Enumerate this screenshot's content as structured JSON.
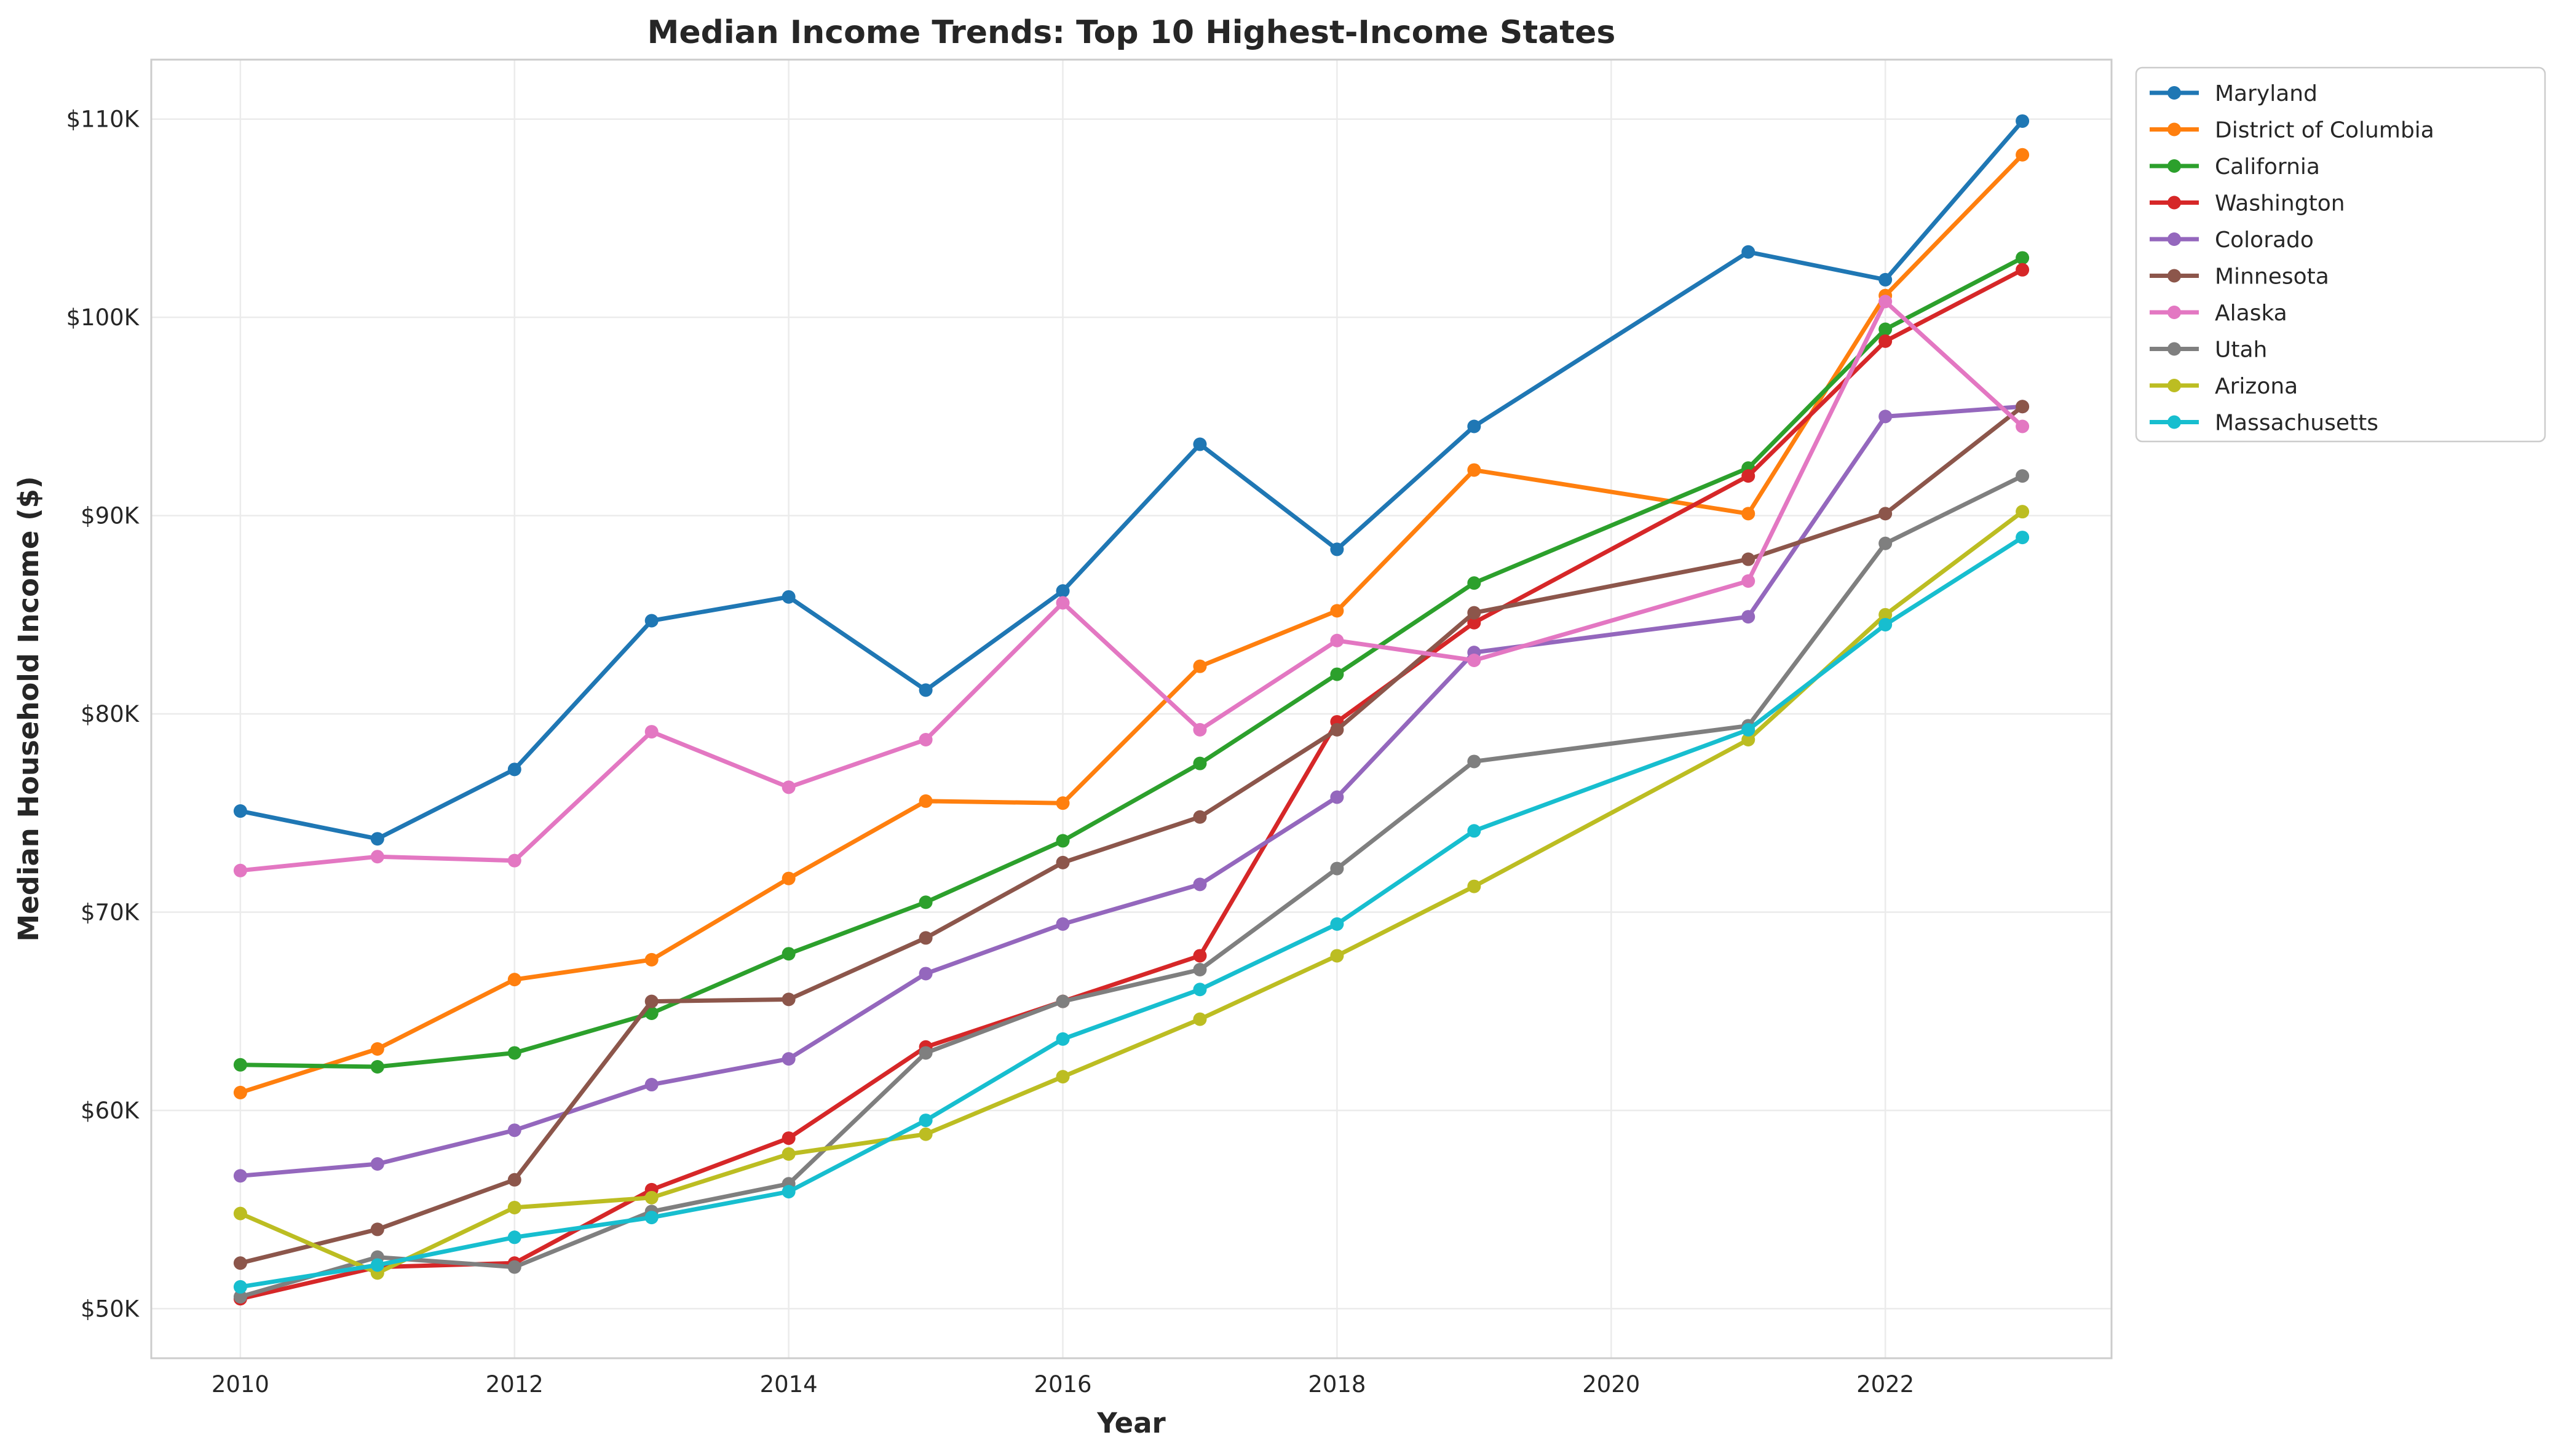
{
  "chart_data": {
    "type": "line",
    "title": "Median Income Trends: Top 10 Highest-Income States",
    "xlabel": "Year",
    "ylabel": "Median Household Income ($)",
    "xlim": [
      2009.35,
      2023.65
    ],
    "ylim": [
      47500,
      113000
    ],
    "x_ticks": [
      2010,
      2012,
      2014,
      2016,
      2018,
      2020,
      2022
    ],
    "y_ticks": [
      50000,
      60000,
      70000,
      80000,
      90000,
      100000,
      110000
    ],
    "y_tick_labels": [
      "$50K",
      "$60K",
      "$70K",
      "$80K",
      "$90K",
      "$100K",
      "$110K"
    ],
    "grid": true,
    "legend_position": "outside-top-right",
    "x": [
      2010,
      2011,
      2012,
      2013,
      2014,
      2015,
      2016,
      2017,
      2018,
      2019,
      2021,
      2022,
      2023
    ],
    "series": [
      {
        "name": "Maryland",
        "color": "#1f77b4",
        "values": [
          75100,
          73700,
          77200,
          84700,
          85900,
          81200,
          86200,
          93600,
          88300,
          94500,
          103300,
          101900,
          109900
        ]
      },
      {
        "name": "District of Columbia",
        "color": "#ff7f0e",
        "values": [
          60900,
          63100,
          66600,
          67600,
          71700,
          75600,
          75500,
          82400,
          85200,
          92300,
          90100,
          101100,
          108200
        ]
      },
      {
        "name": "California",
        "color": "#2ca02c",
        "values": [
          62300,
          62200,
          62900,
          64900,
          67900,
          70500,
          73600,
          77500,
          82000,
          86600,
          92400,
          99400,
          103000
        ]
      },
      {
        "name": "Washington",
        "color": "#d62728",
        "values": [
          50500,
          52100,
          52300,
          56000,
          58600,
          63200,
          65500,
          67800,
          79600,
          84600,
          92000,
          98800,
          102400
        ]
      },
      {
        "name": "Colorado",
        "color": "#9467bd",
        "values": [
          56700,
          57300,
          59000,
          61300,
          62600,
          66900,
          69400,
          71400,
          75800,
          83100,
          84900,
          95000,
          95500
        ]
      },
      {
        "name": "Minnesota",
        "color": "#8c564b",
        "values": [
          52300,
          54000,
          56500,
          65500,
          65600,
          68700,
          72500,
          74800,
          79200,
          85100,
          87800,
          90100,
          95500
        ]
      },
      {
        "name": "Alaska",
        "color": "#e377c2",
        "values": [
          72100,
          72800,
          72600,
          79100,
          76300,
          78700,
          85600,
          79200,
          83700,
          82700,
          86700,
          100800,
          94500
        ]
      },
      {
        "name": "Utah",
        "color": "#7f7f7f",
        "values": [
          50600,
          52600,
          52100,
          54900,
          56300,
          62900,
          65500,
          67100,
          72200,
          77600,
          79400,
          88600,
          92000
        ]
      },
      {
        "name": "Arizona",
        "color": "#bcbd22",
        "values": [
          54800,
          51800,
          55100,
          55600,
          57800,
          58800,
          61700,
          64600,
          67800,
          71300,
          78700,
          85000,
          90200
        ]
      },
      {
        "name": "Massachusetts",
        "color": "#17becf",
        "values": [
          51100,
          52200,
          53600,
          54600,
          55900,
          59500,
          63600,
          66100,
          69400,
          74100,
          79200,
          84500,
          88900
        ]
      }
    ]
  }
}
